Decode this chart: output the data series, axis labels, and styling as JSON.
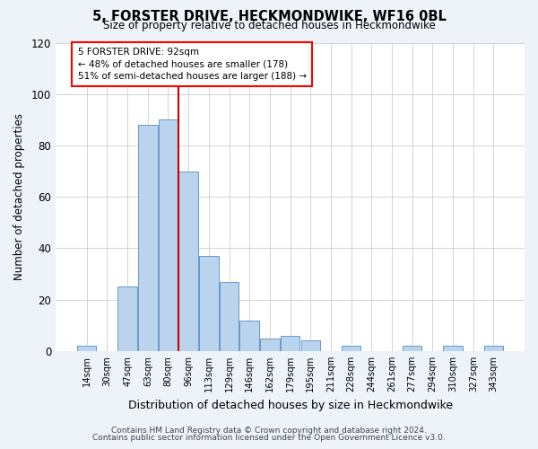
{
  "title": "5, FORSTER DRIVE, HECKMONDWIKE, WF16 0BL",
  "subtitle": "Size of property relative to detached houses in Heckmondwike",
  "xlabel": "Distribution of detached houses by size in Heckmondwike",
  "ylabel": "Number of detached properties",
  "bar_labels": [
    "14sqm",
    "30sqm",
    "47sqm",
    "63sqm",
    "80sqm",
    "96sqm",
    "113sqm",
    "129sqm",
    "146sqm",
    "162sqm",
    "179sqm",
    "195sqm",
    "211sqm",
    "228sqm",
    "244sqm",
    "261sqm",
    "277sqm",
    "294sqm",
    "310sqm",
    "327sqm",
    "343sqm"
  ],
  "bar_values": [
    2,
    0,
    25,
    88,
    90,
    70,
    37,
    27,
    12,
    5,
    6,
    4,
    0,
    2,
    0,
    0,
    2,
    0,
    2,
    0,
    2
  ],
  "bar_color": "#bad4ee",
  "bar_edge_color": "#6699cc",
  "highlight_color_edge": "#cc0000",
  "ylim": [
    0,
    120
  ],
  "yticks": [
    0,
    20,
    40,
    60,
    80,
    100,
    120
  ],
  "annotation_line1": "5 FORSTER DRIVE: 92sqm",
  "annotation_line2": "← 48% of detached houses are smaller (178)",
  "annotation_line3": "51% of semi-detached houses are larger (188) →",
  "vline_x": 4.5,
  "footer_line1": "Contains HM Land Registry data © Crown copyright and database right 2024.",
  "footer_line2": "Contains public sector information licensed under the Open Government Licence v3.0.",
  "bg_color": "#eef2f9",
  "plot_bg_color": "#ffffff",
  "grid_color": "#cccccc"
}
